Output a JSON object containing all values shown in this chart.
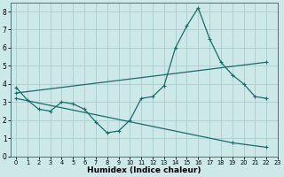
{
  "xlabel": "Humidex (Indice chaleur)",
  "xlim": [
    -0.5,
    23
  ],
  "ylim": [
    0,
    8.5
  ],
  "xticks": [
    0,
    1,
    2,
    3,
    4,
    5,
    6,
    7,
    8,
    9,
    10,
    11,
    12,
    13,
    14,
    15,
    16,
    17,
    18,
    19,
    20,
    21,
    22,
    23
  ],
  "yticks": [
    0,
    1,
    2,
    3,
    4,
    5,
    6,
    7,
    8
  ],
  "bg_color": "#cce8e8",
  "grid_color": "#aacccc",
  "line_color": "#1a6b6b",
  "line1_x": [
    0,
    1,
    2,
    3,
    4,
    5,
    6,
    7,
    8,
    9,
    10,
    11,
    12,
    13,
    14,
    15,
    16,
    17,
    18,
    19,
    20,
    21,
    22
  ],
  "line1_y": [
    3.8,
    3.1,
    2.6,
    2.5,
    3.0,
    2.9,
    2.6,
    1.9,
    1.3,
    1.4,
    2.0,
    3.2,
    3.3,
    3.9,
    6.0,
    7.2,
    8.2,
    6.5,
    5.2,
    4.5,
    4.0,
    3.3,
    3.2
  ],
  "line2_x": [
    0,
    22
  ],
  "line2_y": [
    3.5,
    5.2
  ],
  "line3_x": [
    0,
    19,
    22
  ],
  "line3_y": [
    3.2,
    0.75,
    0.5
  ]
}
